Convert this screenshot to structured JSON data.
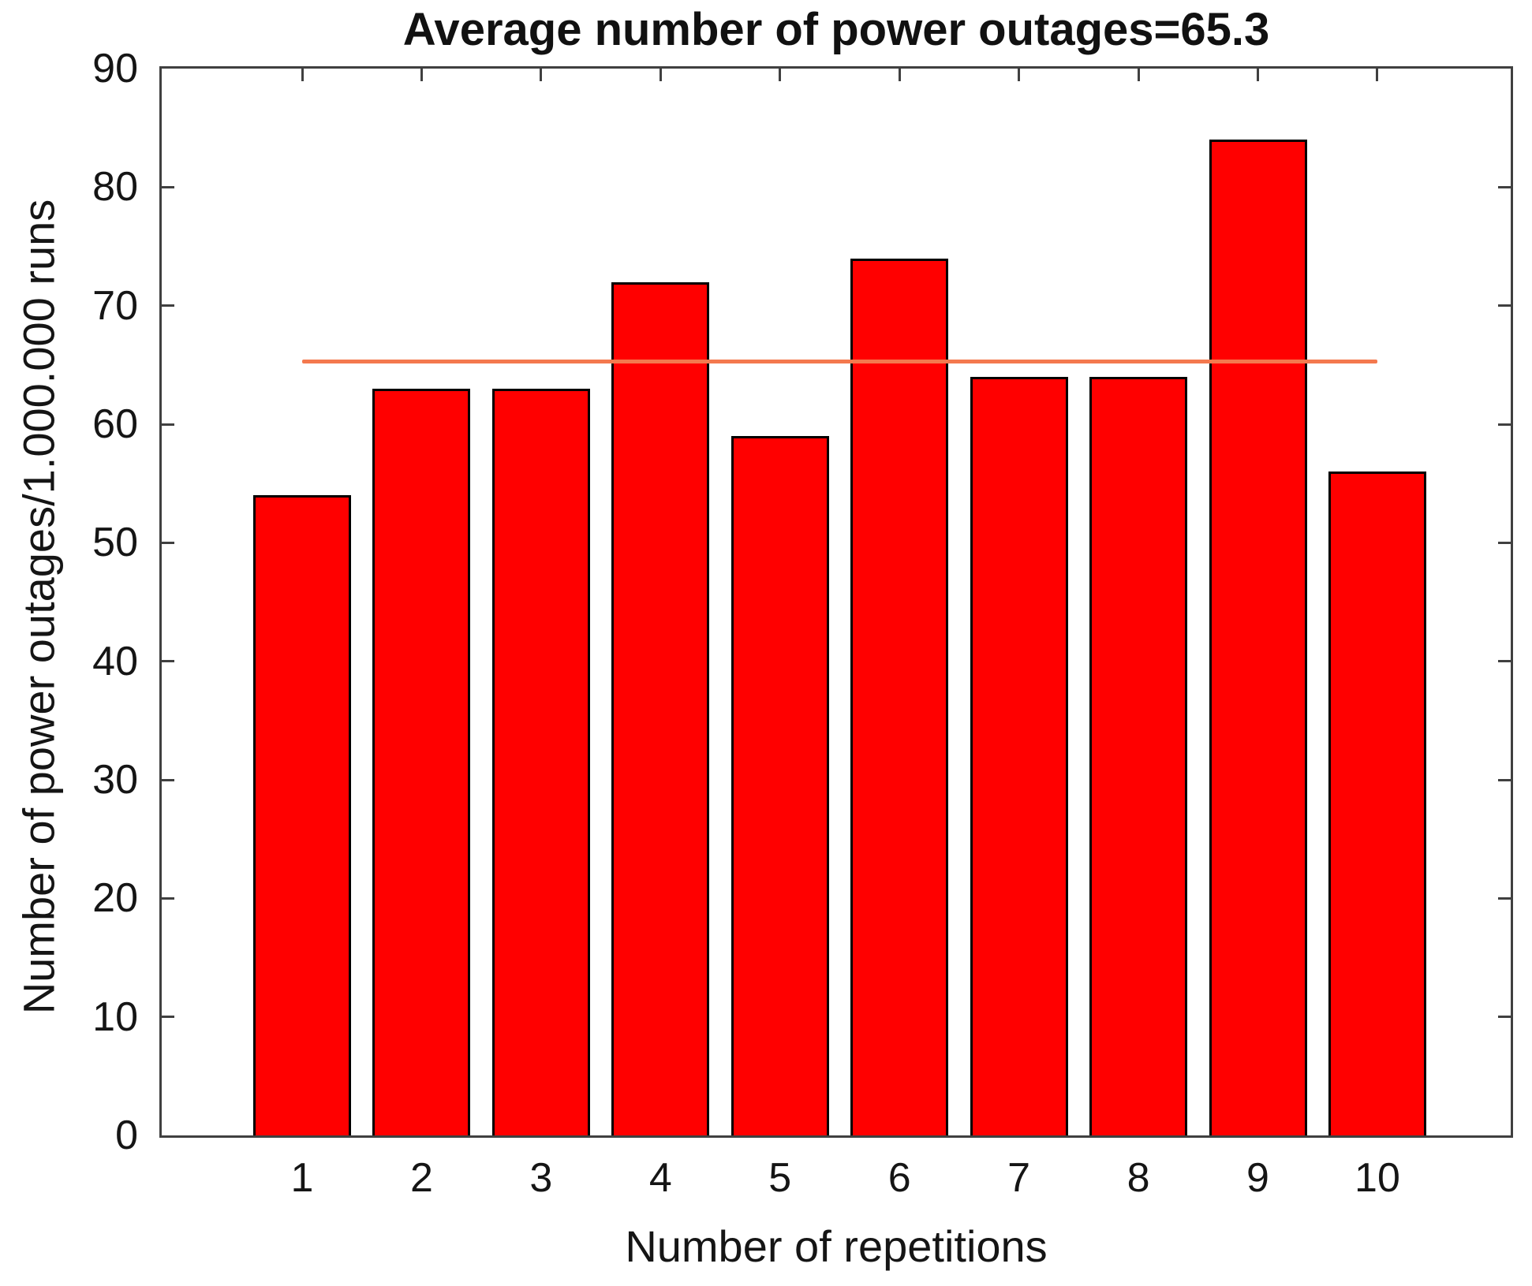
{
  "chart_data": {
    "type": "bar",
    "title": "Average number of power outages=65.3",
    "xlabel": "Number of repetitions",
    "ylabel": "Number of power outages/1.000.000 runs",
    "categories": [
      "1",
      "2",
      "3",
      "4",
      "5",
      "6",
      "7",
      "8",
      "9",
      "10"
    ],
    "values": [
      54,
      63,
      63,
      72,
      59,
      74,
      64,
      64,
      84,
      56
    ],
    "average": 65.3,
    "mean_line": {
      "value": 65.3,
      "x_start": 1,
      "x_end": 10,
      "color": "#f4794e"
    },
    "ylim": [
      0,
      90
    ],
    "yticks": [
      0,
      10,
      20,
      30,
      40,
      50,
      60,
      70,
      80,
      90
    ],
    "bar_color": "#ff0000",
    "bar_edge_color": "#000000",
    "axis_color": "#404040",
    "text_color": "#151515",
    "background_color": "#ffffff",
    "grid": false,
    "legend": "none"
  }
}
